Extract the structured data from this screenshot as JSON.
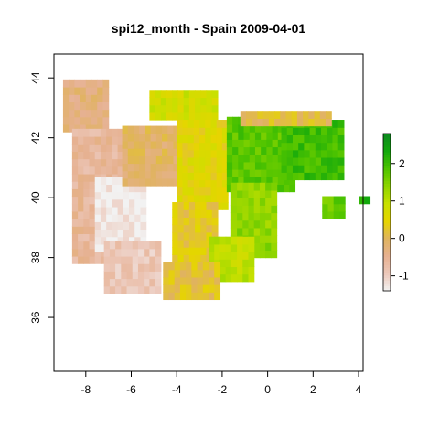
{
  "title": "spi12_month - Spain 2009-04-01",
  "map": {
    "x_range": [
      -9.4,
      4.2
    ],
    "y_range": [
      34.2,
      44.8
    ],
    "x_ticks": [
      -8,
      -6,
      -4,
      -2,
      0,
      2,
      4
    ],
    "x_tick_labels": [
      "-8",
      "-6",
      "-4",
      "-2",
      "0",
      "2",
      "4"
    ],
    "y_ticks": [
      36,
      38,
      40,
      42,
      44
    ],
    "y_tick_labels": [
      "36",
      "38",
      "40",
      "42",
      "44"
    ],
    "cell_size_deg": 0.25,
    "raster_regions": [
      {
        "name": "galicia-north",
        "x": [
          -9.0,
          -7.0
        ],
        "y": [
          42.2,
          43.8
        ],
        "value": -0.3
      },
      {
        "name": "portugal-west",
        "x": [
          -8.6,
          -6.2
        ],
        "y": [
          37.8,
          42.2
        ],
        "value": -0.6
      },
      {
        "name": "extremadura",
        "x": [
          -7.6,
          -5.4
        ],
        "y": [
          38.2,
          40.6
        ],
        "value": -1.3
      },
      {
        "name": "andalusia-west",
        "x": [
          -7.2,
          -4.8
        ],
        "y": [
          36.8,
          38.4
        ],
        "value": -0.9
      },
      {
        "name": "castilla-west",
        "x": [
          -6.4,
          -4.0
        ],
        "y": [
          40.4,
          42.4
        ],
        "value": -0.1
      },
      {
        "name": "cantabria",
        "x": [
          -5.2,
          -2.2
        ],
        "y": [
          42.6,
          43.6
        ],
        "value": 0.8
      },
      {
        "name": "castilla-east",
        "x": [
          -4.0,
          -1.8
        ],
        "y": [
          39.6,
          42.4
        ],
        "value": 0.5
      },
      {
        "name": "la-mancha",
        "x": [
          -4.2,
          -2.2
        ],
        "y": [
          37.6,
          39.8
        ],
        "value": 0.3
      },
      {
        "name": "aragon",
        "x": [
          -1.8,
          1.2
        ],
        "y": [
          40.2,
          42.6
        ],
        "value": 1.8
      },
      {
        "name": "valencia",
        "x": [
          -1.6,
          0.4
        ],
        "y": [
          38.0,
          40.4
        ],
        "value": 1.4
      },
      {
        "name": "murcia",
        "x": [
          -2.6,
          -0.8
        ],
        "y": [
          37.2,
          38.6
        ],
        "value": 1.0
      },
      {
        "name": "andalusia-east",
        "x": [
          -4.6,
          -2.2
        ],
        "y": [
          36.6,
          37.8
        ],
        "value": 0.2
      },
      {
        "name": "catalonia",
        "x": [
          0.6,
          3.2
        ],
        "y": [
          40.6,
          42.6
        ],
        "value": 2.0
      },
      {
        "name": "pyrenees",
        "x": [
          -1.2,
          2.8
        ],
        "y": [
          42.4,
          42.9
        ],
        "value": 0.1
      },
      {
        "name": "mallorca",
        "x": [
          2.4,
          3.4
        ],
        "y": [
          39.3,
          39.9
        ],
        "value": 1.7
      },
      {
        "name": "menorca",
        "x": [
          4.0,
          4.3
        ],
        "y": [
          39.8,
          40.0
        ],
        "value": 2.3
      }
    ]
  },
  "legend": {
    "value_min": -1.4,
    "value_max": 2.8,
    "ticks": [
      -1,
      0,
      1,
      2
    ],
    "tick_labels": [
      "-1",
      "0",
      "1",
      "2"
    ],
    "colors": [
      "#f2f2f2",
      "#ecc8ba",
      "#e6b191",
      "#e0b35e",
      "#e6d500",
      "#c8e000",
      "#8fd500",
      "#4fc400",
      "#12a80c",
      "#0d8a1f"
    ]
  }
}
